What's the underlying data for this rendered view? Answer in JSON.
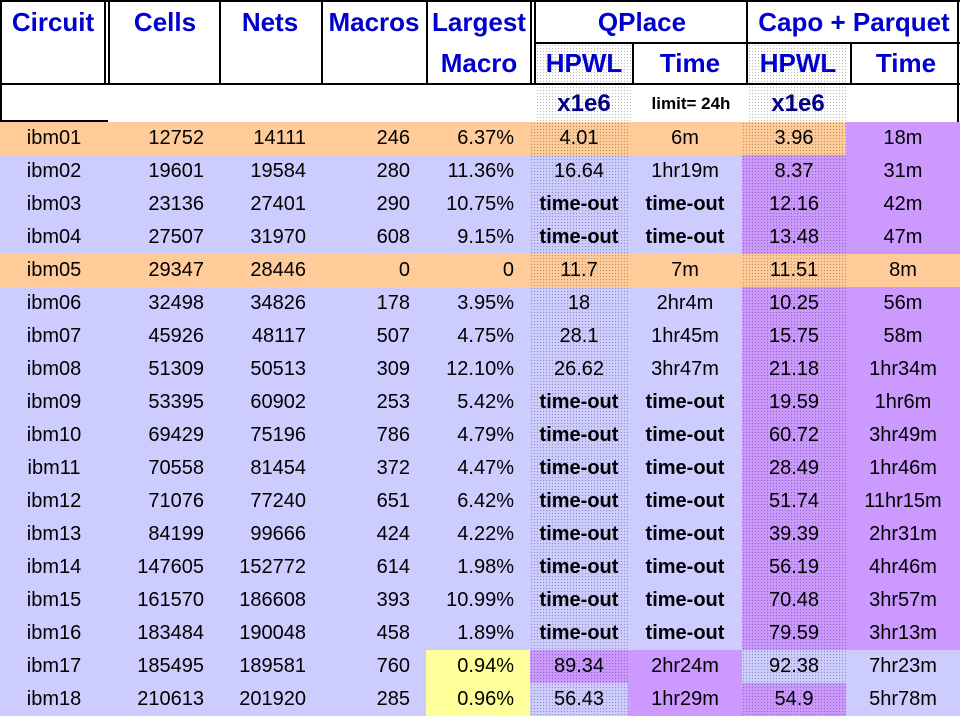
{
  "header": {
    "circuit": "Circuit",
    "cells": "Cells",
    "nets": "Nets",
    "macros": "Macros",
    "largest_line1": "Largest",
    "largest_line2": "Macro",
    "qplace": "QPlace",
    "capo": "Capo + Parquet",
    "hpwl": "HPWL",
    "time": "Time"
  },
  "units": {
    "qplace_hpwl": "x1e6",
    "qplace_time": "limit= 24h",
    "capo_hpwl": "x1e6"
  },
  "colors": {
    "header_text": "#0000cc",
    "row_lavender": "#ccccff",
    "row_orange": "#ffcc99",
    "row_purple": "#cc99ff",
    "row_yellow": "#ffff99",
    "timeout_text": "#000080"
  },
  "rows": [
    {
      "circuit": "ibm01",
      "cells": "12752",
      "nets": "14111",
      "macros": "246",
      "largest": "6.37%",
      "q_hpwl": "4.01",
      "q_time": "6m",
      "c_hpwl": "3.96",
      "c_time": "18m"
    },
    {
      "circuit": "ibm02",
      "cells": "19601",
      "nets": "19584",
      "macros": "280",
      "largest": "11.36%",
      "q_hpwl": "16.64",
      "q_time": "1hr19m",
      "c_hpwl": "8.37",
      "c_time": "31m"
    },
    {
      "circuit": "ibm03",
      "cells": "23136",
      "nets": "27401",
      "macros": "290",
      "largest": "10.75%",
      "q_hpwl": "time-out",
      "q_time": "time-out",
      "c_hpwl": "12.16",
      "c_time": "42m"
    },
    {
      "circuit": "ibm04",
      "cells": "27507",
      "nets": "31970",
      "macros": "608",
      "largest": "9.15%",
      "q_hpwl": "time-out",
      "q_time": "time-out",
      "c_hpwl": "13.48",
      "c_time": "47m"
    },
    {
      "circuit": "ibm05",
      "cells": "29347",
      "nets": "28446",
      "macros": "0",
      "largest": "0",
      "q_hpwl": "11.7",
      "q_time": "7m",
      "c_hpwl": "11.51",
      "c_time": "8m"
    },
    {
      "circuit": "ibm06",
      "cells": "32498",
      "nets": "34826",
      "macros": "178",
      "largest": "3.95%",
      "q_hpwl": "18",
      "q_time": "2hr4m",
      "c_hpwl": "10.25",
      "c_time": "56m"
    },
    {
      "circuit": "ibm07",
      "cells": "45926",
      "nets": "48117",
      "macros": "507",
      "largest": "4.75%",
      "q_hpwl": "28.1",
      "q_time": "1hr45m",
      "c_hpwl": "15.75",
      "c_time": "58m"
    },
    {
      "circuit": "ibm08",
      "cells": "51309",
      "nets": "50513",
      "macros": "309",
      "largest": "12.10%",
      "q_hpwl": "26.62",
      "q_time": "3hr47m",
      "c_hpwl": "21.18",
      "c_time": "1hr34m"
    },
    {
      "circuit": "ibm09",
      "cells": "53395",
      "nets": "60902",
      "macros": "253",
      "largest": "5.42%",
      "q_hpwl": "time-out",
      "q_time": "time-out",
      "c_hpwl": "19.59",
      "c_time": "1hr6m"
    },
    {
      "circuit": "ibm10",
      "cells": "69429",
      "nets": "75196",
      "macros": "786",
      "largest": "4.79%",
      "q_hpwl": "time-out",
      "q_time": "time-out",
      "c_hpwl": "60.72",
      "c_time": "3hr49m"
    },
    {
      "circuit": "ibm11",
      "cells": "70558",
      "nets": "81454",
      "macros": "372",
      "largest": "4.47%",
      "q_hpwl": "time-out",
      "q_time": "time-out",
      "c_hpwl": "28.49",
      "c_time": "1hr46m"
    },
    {
      "circuit": "ibm12",
      "cells": "71076",
      "nets": "77240",
      "macros": "651",
      "largest": "6.42%",
      "q_hpwl": "time-out",
      "q_time": "time-out",
      "c_hpwl": "51.74",
      "c_time": "11hr15m"
    },
    {
      "circuit": "ibm13",
      "cells": "84199",
      "nets": "99666",
      "macros": "424",
      "largest": "4.22%",
      "q_hpwl": "time-out",
      "q_time": "time-out",
      "c_hpwl": "39.39",
      "c_time": "2hr31m"
    },
    {
      "circuit": "ibm14",
      "cells": "147605",
      "nets": "152772",
      "macros": "614",
      "largest": "1.98%",
      "q_hpwl": "time-out",
      "q_time": "time-out",
      "c_hpwl": "56.19",
      "c_time": "4hr46m"
    },
    {
      "circuit": "ibm15",
      "cells": "161570",
      "nets": "186608",
      "macros": "393",
      "largest": "10.99%",
      "q_hpwl": "time-out",
      "q_time": "time-out",
      "c_hpwl": "70.48",
      "c_time": "3hr57m"
    },
    {
      "circuit": "ibm16",
      "cells": "183484",
      "nets": "190048",
      "macros": "458",
      "largest": "1.89%",
      "q_hpwl": "time-out",
      "q_time": "time-out",
      "c_hpwl": "79.59",
      "c_time": "3hr13m"
    },
    {
      "circuit": "ibm17",
      "cells": "185495",
      "nets": "189581",
      "macros": "760",
      "largest": "0.94%",
      "q_hpwl": "89.34",
      "q_time": "2hr24m",
      "c_hpwl": "92.38",
      "c_time": "7hr23m"
    },
    {
      "circuit": "ibm18",
      "cells": "210613",
      "nets": "201920",
      "macros": "285",
      "largest": "0.96%",
      "q_hpwl": "56.43",
      "q_time": "1hr29m",
      "c_hpwl": "54.9",
      "c_time": "5hr78m"
    }
  ]
}
